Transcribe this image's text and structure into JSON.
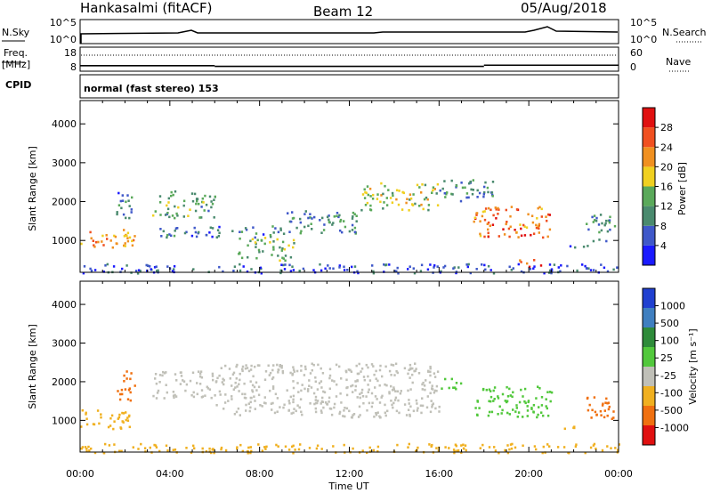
{
  "header": {
    "station": "Hankasalmi (fitACF)",
    "beam": "Beam 12",
    "date": "05/Aug/2018"
  },
  "noise_panel": {
    "left_label": "N.Sky",
    "right_label": "N.Search",
    "left_ticks": [
      "10^5",
      "10^0"
    ],
    "right_ticks": [
      "10^5",
      "10^0"
    ]
  },
  "freq_panel": {
    "left_label_line1": "Freq.",
    "left_label_line2": "[MHz]",
    "left_ticks": [
      "18",
      "8"
    ],
    "right_label": "Nave",
    "right_ticks": [
      "60",
      "0"
    ],
    "freq_mhz_segments": [
      {
        "t0": 0.0,
        "t1": 6.0,
        "value": 10.3
      },
      {
        "t0": 6.0,
        "t1": 18.0,
        "value": 10.0
      },
      {
        "t0": 18.0,
        "t1": 24.0,
        "value": 10.5
      }
    ],
    "nave_level": 40
  },
  "cpid": {
    "label": "CPID",
    "text": "normal (fast stereo) 153"
  },
  "chart_data": [
    {
      "type": "heatmap",
      "name": "power",
      "xlabel": "Time UT",
      "ylabel": "Slant Range [km]",
      "x_range_hours": [
        0,
        24
      ],
      "ylim": [
        180,
        4600
      ],
      "y_ticks": [
        "1000",
        "2000",
        "3000",
        "4000"
      ],
      "y_tick_values": [
        1000,
        2000,
        3000,
        4000
      ],
      "colorbar_label": "Power [dB]",
      "colorbar_ticks": [
        "4",
        "8",
        "12",
        "16",
        "20",
        "24",
        "28"
      ],
      "colorbar_colors": [
        "#1a1aff",
        "#3f58c9",
        "#4a8a6e",
        "#5aa95a",
        "#f0d020",
        "#f09020",
        "#f05020",
        "#e01010"
      ],
      "scatter_regions": [
        {
          "t0": 0.0,
          "t1": 2.4,
          "r0": 800,
          "r1": 1300,
          "value": 22
        },
        {
          "t0": 1.6,
          "t1": 2.4,
          "r0": 1500,
          "r1": 2300,
          "value": 8
        },
        {
          "t0": 3.2,
          "t1": 6.0,
          "r0": 1600,
          "r1": 2300,
          "value": 12
        },
        {
          "t0": 3.5,
          "t1": 9.0,
          "r0": 1100,
          "r1": 1400,
          "value": 8
        },
        {
          "t0": 7.0,
          "t1": 9.5,
          "r0": 500,
          "r1": 1100,
          "value": 14
        },
        {
          "t0": 9.0,
          "t1": 12.5,
          "r0": 1200,
          "r1": 1800,
          "value": 10
        },
        {
          "t0": 12.5,
          "t1": 16.0,
          "r0": 1800,
          "r1": 2500,
          "value": 16
        },
        {
          "t0": 16.0,
          "t1": 18.5,
          "r0": 2000,
          "r1": 2600,
          "value": 10
        },
        {
          "t0": 17.5,
          "t1": 21.0,
          "r0": 1100,
          "r1": 1900,
          "value": 24
        },
        {
          "t0": 19.5,
          "t1": 20.5,
          "r0": 350,
          "r1": 550,
          "value": 26
        },
        {
          "t0": 21.5,
          "t1": 22.8,
          "r0": 800,
          "r1": 900,
          "value": 8
        },
        {
          "t0": 22.5,
          "t1": 23.8,
          "r0": 1000,
          "r1": 1700,
          "value": 10
        },
        {
          "t0": 0.0,
          "t1": 24.0,
          "r0": 180,
          "r1": 420,
          "value": 6
        }
      ]
    },
    {
      "type": "heatmap",
      "name": "velocity",
      "xlabel": "Time UT",
      "ylabel": "Slant Range [km]",
      "x_range_hours": [
        0,
        24
      ],
      "ylim": [
        180,
        4600
      ],
      "y_ticks": [
        "1000",
        "2000",
        "3000",
        "4000"
      ],
      "y_tick_values": [
        1000,
        2000,
        3000,
        4000
      ],
      "colorbar_label": "Velocity [m s⁻¹]",
      "colorbar_ticks": [
        "1000",
        "500",
        "100",
        "25",
        "-25",
        "-100",
        "-500",
        "-1000"
      ],
      "colorbar_colors": [
        "#2040d0",
        "#3f7fc0",
        "#2e8b3a",
        "#52c83c",
        "#c0c0b8",
        "#f0b020",
        "#f07010",
        "#e01010"
      ],
      "ground_scatter_color": "#c0c0b8",
      "scatter_regions": [
        {
          "t0": 0.0,
          "t1": 2.4,
          "r0": 800,
          "r1": 1300,
          "value": -60
        },
        {
          "t0": 1.6,
          "t1": 2.4,
          "r0": 1500,
          "r1": 2300,
          "value": -200
        },
        {
          "t0": 3.2,
          "t1": 6.0,
          "r0": 1600,
          "r1": 2300,
          "value": 0
        },
        {
          "t0": 6.0,
          "t1": 16.0,
          "r0": 1100,
          "r1": 2500,
          "value": 0
        },
        {
          "t0": 16.0,
          "t1": 17.0,
          "r0": 1800,
          "r1": 2100,
          "value": 60
        },
        {
          "t0": 17.5,
          "t1": 21.0,
          "r0": 1100,
          "r1": 1900,
          "value": 80
        },
        {
          "t0": 21.5,
          "t1": 22.8,
          "r0": 800,
          "r1": 900,
          "value": -60
        },
        {
          "t0": 22.5,
          "t1": 23.8,
          "r0": 1000,
          "r1": 1700,
          "value": -150
        },
        {
          "t0": 0.0,
          "t1": 24.0,
          "r0": 180,
          "r1": 420,
          "value": -40
        }
      ]
    }
  ],
  "x_axis": {
    "label": "Time UT",
    "ticks": [
      "00:00",
      "04:00",
      "08:00",
      "12:00",
      "16:00",
      "20:00",
      "00:00"
    ]
  }
}
